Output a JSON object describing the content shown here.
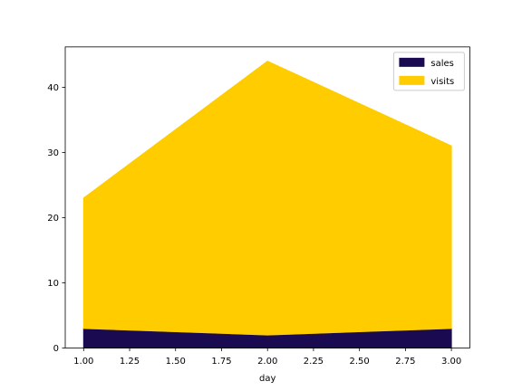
{
  "chart_data": {
    "type": "area",
    "stacked": true,
    "x": [
      1.0,
      2.0,
      3.0
    ],
    "series": [
      {
        "name": "sales",
        "values": [
          3,
          2,
          3
        ],
        "color": "#1a0a52"
      },
      {
        "name": "visits",
        "values": [
          20,
          42,
          28
        ],
        "color": "#ffcc00"
      }
    ],
    "xlabel": "day",
    "ylabel": "",
    "title": "",
    "xlim": [
      0.9,
      3.1
    ],
    "ylim": [
      0,
      46.2
    ],
    "xticks": [
      1.0,
      1.25,
      1.5,
      1.75,
      2.0,
      2.25,
      2.5,
      2.75,
      3.0
    ],
    "xtick_labels": [
      "1.00",
      "1.25",
      "1.50",
      "1.75",
      "2.00",
      "2.25",
      "2.50",
      "2.75",
      "3.00"
    ],
    "yticks": [
      0,
      10,
      20,
      30,
      40
    ],
    "ytick_labels": [
      "0",
      "10",
      "20",
      "30",
      "40"
    ],
    "grid": false,
    "legend_position": "top-right"
  }
}
